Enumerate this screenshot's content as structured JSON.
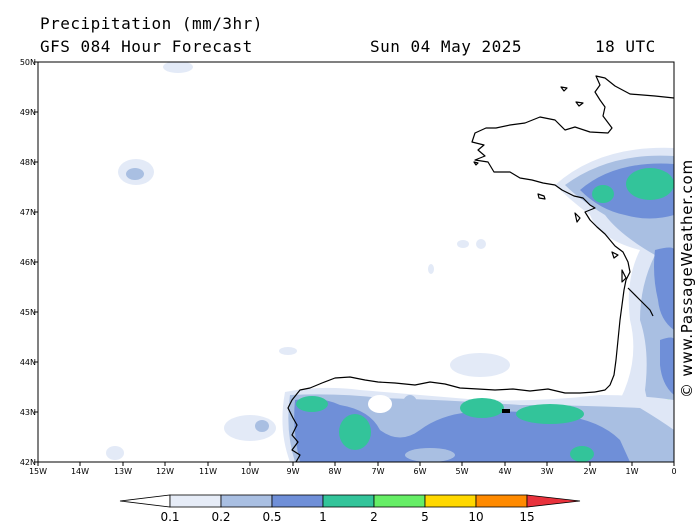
{
  "header": {
    "title": "Precipitation (mm/3hr)",
    "model": "GFS 084 Hour Forecast",
    "date": "Sun 04 May 2025",
    "time": "18 UTC"
  },
  "lat_labels": [
    "50N",
    "49N",
    "48N",
    "47N",
    "46N",
    "45N",
    "44N",
    "43N",
    "42N"
  ],
  "lon_labels": [
    "15W",
    "14W",
    "13W",
    "12W",
    "11W",
    "10W",
    "9W",
    "8W",
    "7W",
    "6W",
    "5W",
    "4W",
    "3W",
    "2W",
    "1W",
    "0"
  ],
  "watermark": "© www.PassageWeather.com",
  "legend": {
    "labels": [
      "0.1",
      "0.2",
      "0.5",
      "1",
      "2",
      "5",
      "10",
      "15"
    ],
    "colors": [
      "#e6ecf7",
      "#a9bfe2",
      "#6f8fd8",
      "#33c49a",
      "#66ee66",
      "#ffd800",
      "#ff8a00",
      "#e8323c"
    ]
  },
  "colors": {
    "light": "#dfe7f6",
    "blue_light": "#a9bfe2",
    "blue": "#6f8fd8",
    "teal": "#33c49a",
    "coast": "#000000"
  }
}
